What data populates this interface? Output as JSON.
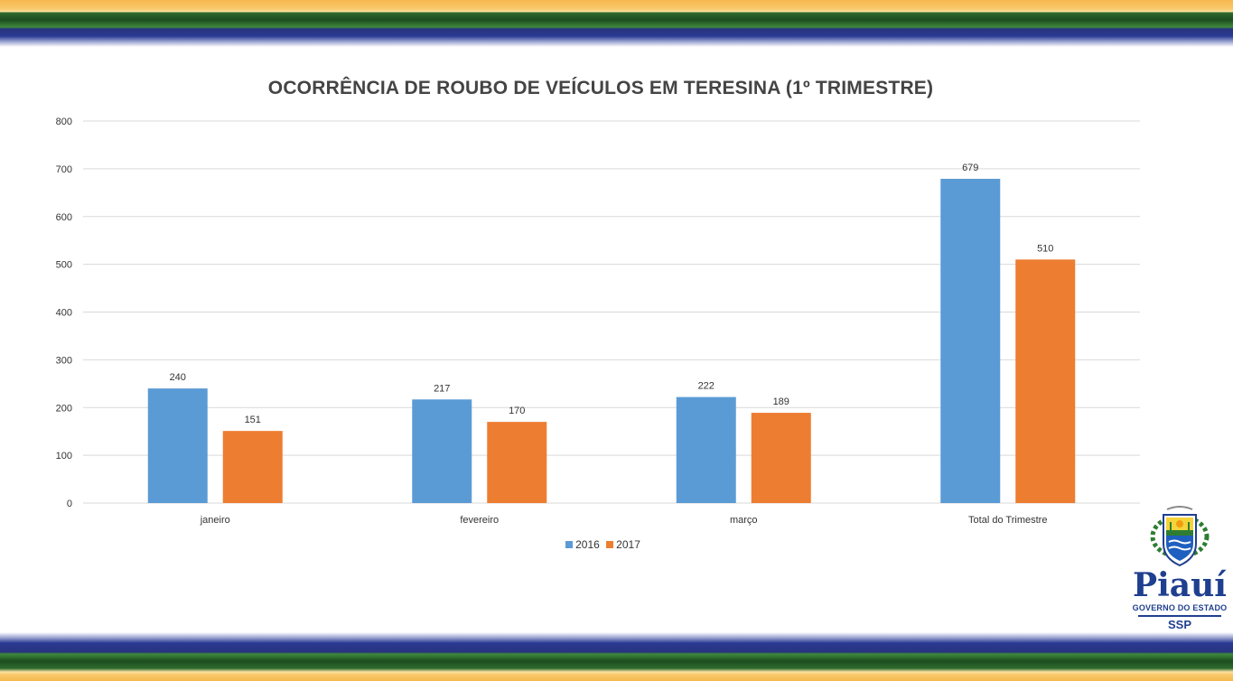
{
  "colors": {
    "series_2016": "#5b9bd5",
    "series_2017": "#ed7d31",
    "gridline": "#d9d9d9",
    "logo_blue": "#1f3f8f"
  },
  "logo": {
    "name": "Piauí",
    "subtitle": "GOVERNO DO ESTADO",
    "agency": "SSP",
    "icon": "coat-of-arms-icon"
  },
  "chart_data": {
    "type": "bar",
    "title": "OCORRÊNCIA DE ROUBO DE VEÍCULOS EM TERESINA (1º TRIMESTRE)",
    "categories": [
      "janeiro",
      "fevereiro",
      "março",
      "Total do Trimestre"
    ],
    "series": [
      {
        "name": "2016",
        "values": [
          240,
          217,
          222,
          679
        ]
      },
      {
        "name": "2017",
        "values": [
          151,
          170,
          189,
          510
        ]
      }
    ],
    "ylim": [
      0,
      800
    ],
    "yticks": [
      0,
      100,
      200,
      300,
      400,
      500,
      600,
      700,
      800
    ],
    "grid": true,
    "data_labels": true,
    "legend": "bottom"
  }
}
